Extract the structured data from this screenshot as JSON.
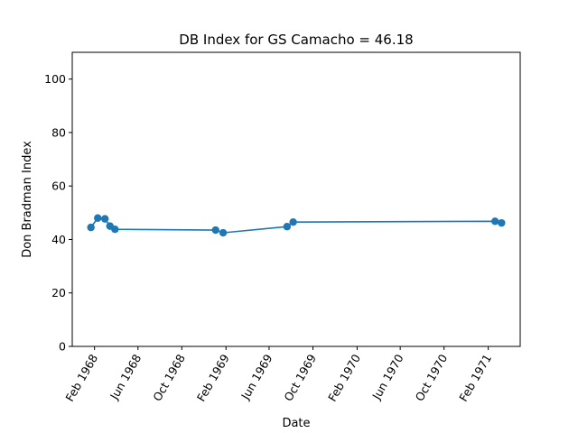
{
  "chart_data": {
    "type": "line",
    "title": "DB Index for GS Camacho = 46.18",
    "xlabel": "Date",
    "ylabel": "Don Bradman Index",
    "ylim": [
      0,
      110
    ],
    "xlim": [
      "1967-12-01",
      "1971-05-01"
    ],
    "yticks": [
      0,
      20,
      40,
      60,
      80,
      100
    ],
    "xticks": [
      {
        "date": "1968-02-01",
        "label": "Feb 1968"
      },
      {
        "date": "1968-06-01",
        "label": "Jun 1968"
      },
      {
        "date": "1968-10-01",
        "label": "Oct 1968"
      },
      {
        "date": "1969-02-01",
        "label": "Feb 1969"
      },
      {
        "date": "1969-06-01",
        "label": "Jun 1969"
      },
      {
        "date": "1969-10-01",
        "label": "Oct 1969"
      },
      {
        "date": "1970-02-01",
        "label": "Feb 1970"
      },
      {
        "date": "1970-06-01",
        "label": "Jun 1970"
      },
      {
        "date": "1970-10-01",
        "label": "Oct 1970"
      },
      {
        "date": "1971-02-01",
        "label": "Feb 1971"
      }
    ],
    "series": [
      {
        "color": "#1f77b4",
        "points": [
          {
            "x": "1968-01-22",
            "y": 44.5
          },
          {
            "x": "1968-02-10",
            "y": 48.0
          },
          {
            "x": "1968-03-01",
            "y": 47.7
          },
          {
            "x": "1968-03-15",
            "y": 45.0
          },
          {
            "x": "1968-03-29",
            "y": 43.8
          },
          {
            "x": "1969-01-03",
            "y": 43.5
          },
          {
            "x": "1969-01-24",
            "y": 42.5
          },
          {
            "x": "1969-07-21",
            "y": 44.8
          },
          {
            "x": "1969-08-07",
            "y": 46.5
          },
          {
            "x": "1971-02-20",
            "y": 46.8
          },
          {
            "x": "1971-03-10",
            "y": 46.18
          }
        ]
      }
    ],
    "grid": false,
    "legend": "none"
  }
}
